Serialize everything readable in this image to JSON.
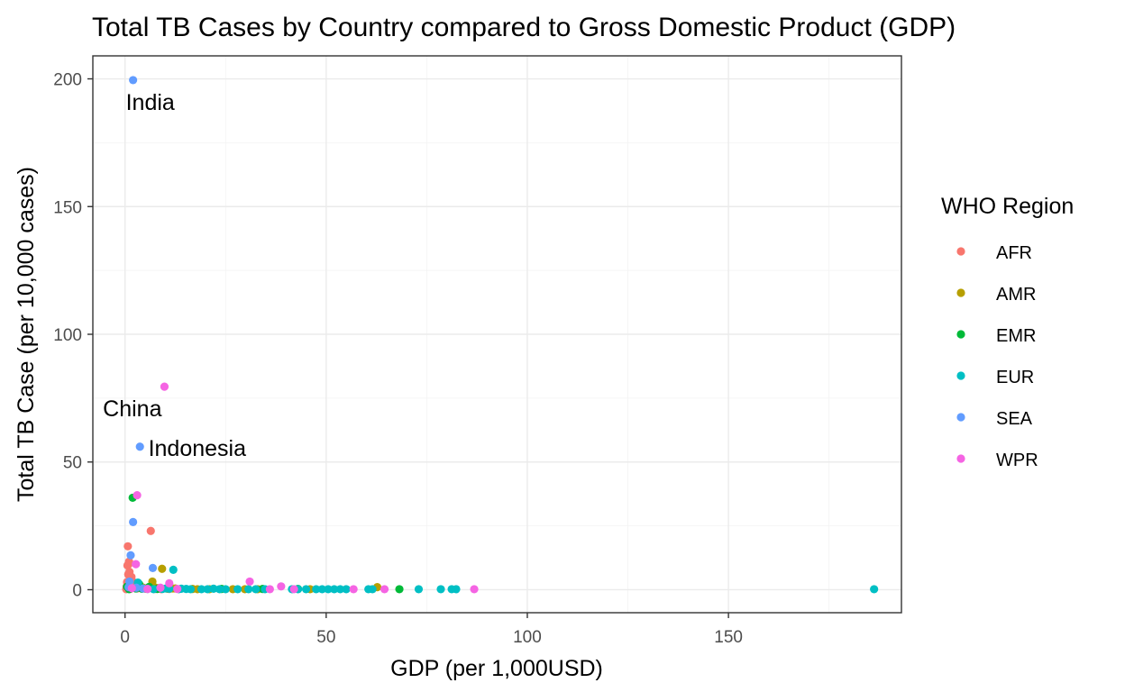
{
  "chart_data": {
    "type": "scatter",
    "title": "Total TB Cases by Country compared to Gross Domestic Product (GDP)",
    "xlabel": "GDP (per 1,000USD)",
    "ylabel": "Total TB Case (per 10,000 cases)",
    "xlim": [
      -8,
      193
    ],
    "ylim": [
      -9,
      209
    ],
    "x_ticks": [
      0,
      50,
      100,
      150
    ],
    "y_ticks": [
      0,
      50,
      100,
      150,
      200
    ],
    "grid": true,
    "legend": {
      "title": "WHO Region",
      "position": "right",
      "entries": [
        {
          "name": "AFR",
          "color": "#F8766D"
        },
        {
          "name": "AMR",
          "color": "#B79F00"
        },
        {
          "name": "EMR",
          "color": "#00BA38"
        },
        {
          "name": "EUR",
          "color": "#00BFC4"
        },
        {
          "name": "SEA",
          "color": "#619CFF"
        },
        {
          "name": "WPR",
          "color": "#F564E3"
        }
      ]
    },
    "annotations": [
      {
        "text": "India",
        "x": 0.2,
        "y": 191,
        "anchor": "start"
      },
      {
        "text": "China",
        "x": -5.5,
        "y": 71,
        "anchor": "start"
      },
      {
        "text": "Indonesia",
        "x": 5.8,
        "y": 55.5,
        "anchor": "start"
      }
    ],
    "series": [
      {
        "name": "AFR",
        "color": "#F8766D",
        "points": [
          [
            0.7,
            17
          ],
          [
            0.6,
            9.5
          ],
          [
            0.9,
            10
          ],
          [
            1.1,
            7
          ],
          [
            0.8,
            6
          ],
          [
            1.2,
            4
          ],
          [
            0.5,
            3
          ],
          [
            1.5,
            2.5
          ],
          [
            0.6,
            2
          ],
          [
            1.8,
            1.5
          ],
          [
            2.2,
            1
          ],
          [
            0.9,
            0.8
          ],
          [
            3.0,
            0.5
          ],
          [
            1.3,
            0.3
          ],
          [
            2.5,
            1.8
          ],
          [
            4.0,
            0.6
          ],
          [
            6.4,
            23
          ],
          [
            1.0,
            11
          ],
          [
            1.6,
            5
          ],
          [
            1.9,
            3.2
          ],
          [
            0.4,
            1.2
          ],
          [
            2.8,
            2.6
          ],
          [
            5.0,
            0.4
          ],
          [
            7.5,
            0.3
          ],
          [
            9.0,
            0.2
          ],
          [
            11.0,
            0.3
          ],
          [
            1.4,
            0.9
          ],
          [
            0.3,
            0.2
          ]
        ]
      },
      {
        "name": "AMR",
        "color": "#B79F00",
        "points": [
          [
            9.2,
            8.2
          ],
          [
            6.8,
            3.2
          ],
          [
            8.2,
            0.6
          ],
          [
            10.5,
            0.4
          ],
          [
            12.5,
            0.5
          ],
          [
            7.3,
            1.0
          ],
          [
            5.2,
            0.5
          ],
          [
            16.8,
            0.3
          ],
          [
            18.0,
            0.2
          ],
          [
            21.0,
            0.2
          ],
          [
            26.8,
            0.2
          ],
          [
            29.8,
            0.2
          ],
          [
            33.0,
            0.2
          ],
          [
            46.0,
            0.2
          ],
          [
            62.7,
            1.0
          ],
          [
            3.8,
            1.5
          ],
          [
            4.5,
            0.8
          ],
          [
            11.8,
            0.5
          ]
        ]
      },
      {
        "name": "EMR",
        "color": "#00BA38",
        "points": [
          [
            1.9,
            36
          ],
          [
            0.5,
            1.2
          ],
          [
            1.3,
            0.6
          ],
          [
            2.7,
            0.5
          ],
          [
            4.2,
            0.4
          ],
          [
            3.5,
            2.2
          ],
          [
            8.0,
            0.3
          ],
          [
            24.0,
            0.3
          ],
          [
            34.2,
            0.3
          ],
          [
            43.0,
            0.3
          ],
          [
            68.2,
            0.2
          ],
          [
            6.0,
            1.1
          ],
          [
            1.0,
            0.2
          ]
        ]
      },
      {
        "name": "EUR",
        "color": "#00BFC4",
        "points": [
          [
            3.2,
            2.8
          ],
          [
            5.6,
            0.3
          ],
          [
            7.1,
            0.2
          ],
          [
            9.3,
            0.3
          ],
          [
            11.0,
            0.4
          ],
          [
            12.0,
            7.8
          ],
          [
            13.4,
            0.2
          ],
          [
            15.2,
            0.3
          ],
          [
            16.3,
            0.2
          ],
          [
            19.0,
            0.2
          ],
          [
            20.5,
            0.2
          ],
          [
            23.5,
            0.2
          ],
          [
            25.0,
            0.2
          ],
          [
            28.0,
            0.2
          ],
          [
            30.7,
            0.2
          ],
          [
            32.5,
            0.2
          ],
          [
            34.8,
            0.2
          ],
          [
            41.5,
            0.2
          ],
          [
            43.0,
            0.2
          ],
          [
            45.0,
            0.2
          ],
          [
            47.5,
            0.2
          ],
          [
            49.0,
            0.2
          ],
          [
            50.5,
            0.2
          ],
          [
            52.0,
            0.2
          ],
          [
            53.5,
            0.2
          ],
          [
            55.0,
            0.2
          ],
          [
            60.5,
            0.2
          ],
          [
            61.5,
            0.2
          ],
          [
            73.0,
            0.2
          ],
          [
            78.5,
            0.2
          ],
          [
            81.2,
            0.2
          ],
          [
            82.3,
            0.2
          ],
          [
            186.2,
            0.2
          ],
          [
            10.2,
            0.5
          ],
          [
            14.0,
            0.4
          ],
          [
            22.0,
            0.4
          ]
        ]
      },
      {
        "name": "SEA",
        "color": "#619CFF",
        "points": [
          [
            2.0,
            199.5
          ],
          [
            3.7,
            56
          ],
          [
            2.0,
            26.5
          ],
          [
            1.4,
            13.5
          ],
          [
            6.9,
            8.5
          ],
          [
            1.1,
            3.2
          ],
          [
            0.9,
            1.0
          ],
          [
            4.5,
            0.5
          ],
          [
            2.8,
            0.8
          ]
        ]
      },
      {
        "name": "WPR",
        "color": "#F564E3",
        "points": [
          [
            9.8,
            79.5
          ],
          [
            3.0,
            37
          ],
          [
            2.7,
            10
          ],
          [
            31.0,
            3.2
          ],
          [
            11.0,
            2.5
          ],
          [
            5.6,
            0.3
          ],
          [
            8.8,
            0.8
          ],
          [
            36.0,
            0.2
          ],
          [
            38.8,
            1.3
          ],
          [
            42.0,
            0.2
          ],
          [
            56.8,
            0.2
          ],
          [
            64.5,
            0.2
          ],
          [
            86.8,
            0.2
          ],
          [
            1.7,
            0.6
          ],
          [
            13.0,
            0.3
          ]
        ]
      }
    ]
  }
}
